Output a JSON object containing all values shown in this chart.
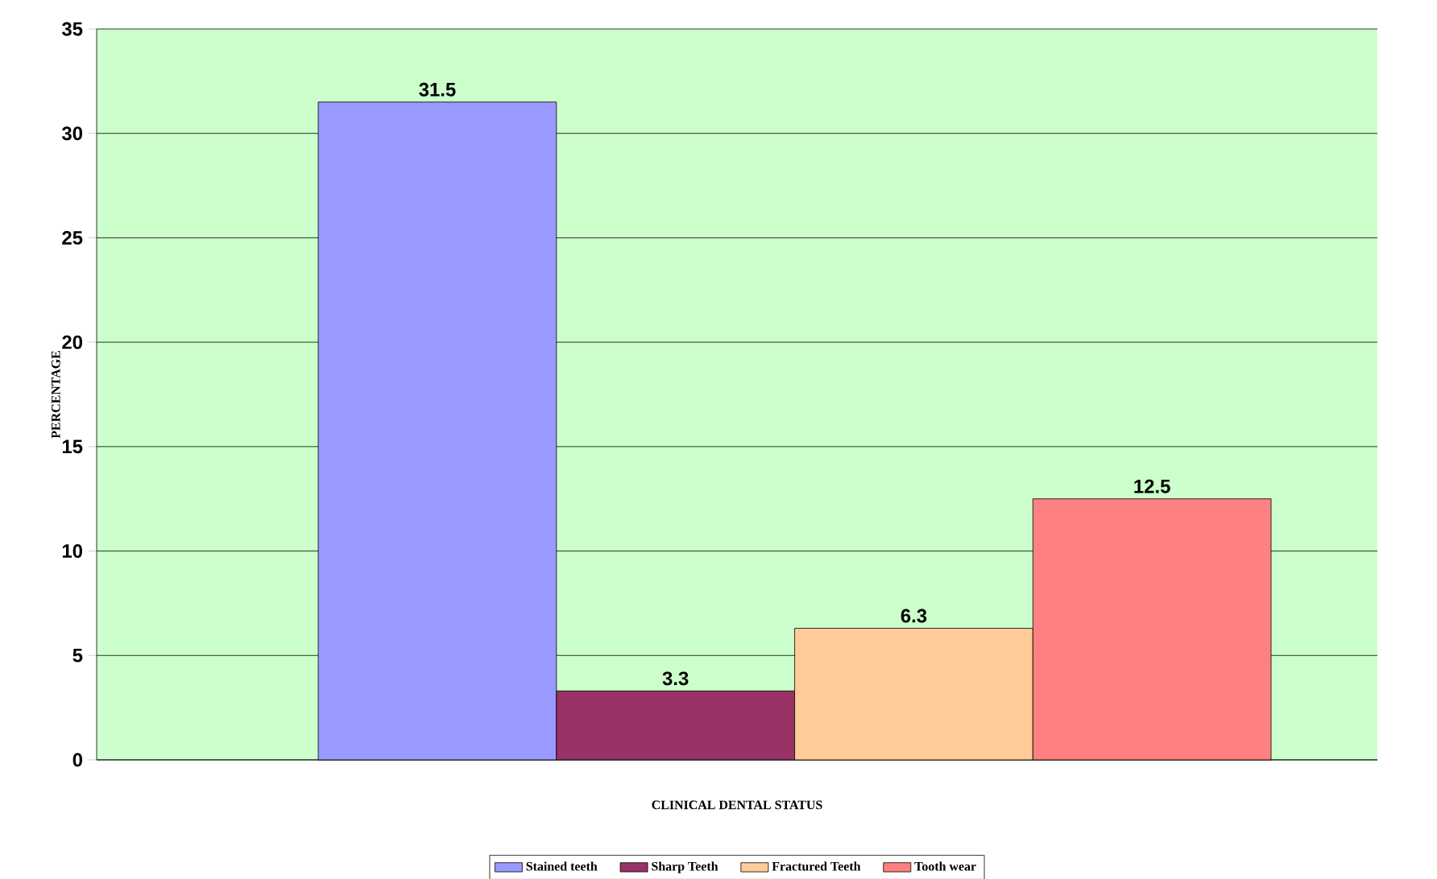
{
  "chart_data": {
    "type": "bar",
    "xlabel": "CLINICAL DENTAL STATUS",
    "ylabel": "PERCENTAGE",
    "categories": [
      null
    ],
    "series": [
      {
        "name": "Stained teeth",
        "color": "#9999ff",
        "values": [
          31.5
        ]
      },
      {
        "name": "Sharp Teeth",
        "color": "#993366",
        "values": [
          3.3
        ]
      },
      {
        "name": "Fractured Teeth",
        "color": "#ffcc99",
        "values": [
          6.3
        ]
      },
      {
        "name": "Tooth wear",
        "color": "#ff8080",
        "values": [
          12.5
        ]
      }
    ],
    "ylim": [
      0,
      35
    ],
    "yticks": [
      0,
      5,
      10,
      15,
      20,
      25,
      30,
      35
    ],
    "grid": "y",
    "legend": "bottom",
    "data_labels": true
  }
}
